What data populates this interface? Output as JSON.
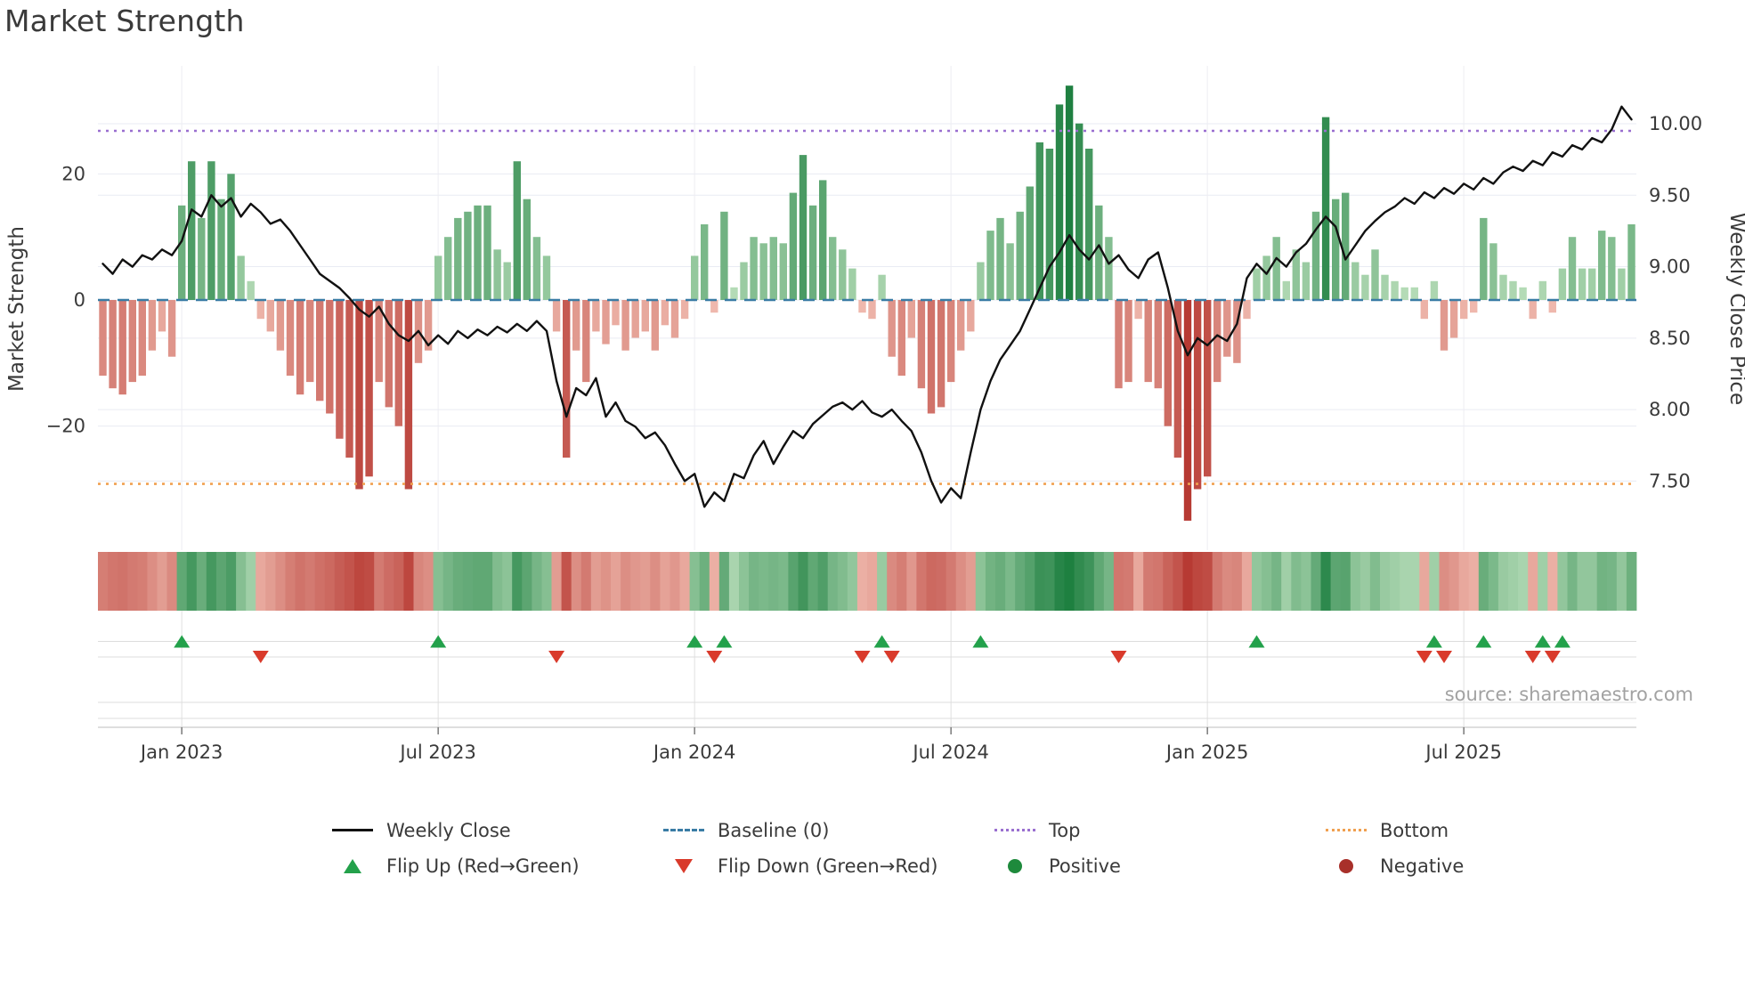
{
  "title": "Market Strength",
  "source_text": "source: sharemaestro.com",
  "axes": {
    "left_label": "Market Strength",
    "right_label": "Weekly Close Price",
    "left_ticks": [
      {
        "value": 20,
        "label": "20"
      },
      {
        "value": 0,
        "label": "0"
      },
      {
        "value": -20,
        "label": "−20"
      }
    ],
    "right_ticks": [
      {
        "value": 10.0,
        "label": "10.00"
      },
      {
        "value": 9.5,
        "label": "9.50"
      },
      {
        "value": 9.0,
        "label": "9.00"
      },
      {
        "value": 8.5,
        "label": "8.50"
      },
      {
        "value": 8.0,
        "label": "8.00"
      },
      {
        "value": 7.5,
        "label": "7.50"
      }
    ],
    "x_ticks": [
      {
        "week": 8,
        "label": "Jan 2023"
      },
      {
        "week": 34,
        "label": "Jul 2023"
      },
      {
        "week": 60,
        "label": "Jan 2024"
      },
      {
        "week": 86,
        "label": "Jul 2024"
      },
      {
        "week": 112,
        "label": "Jan 2025"
      },
      {
        "week": 138,
        "label": "Jul 2025"
      }
    ]
  },
  "chart_data": {
    "type": "bar+line",
    "x_unit": "week",
    "weeks": 156,
    "left_axis_range": [
      -38,
      37
    ],
    "right_axis_range": [
      7.29,
      10.36
    ],
    "series": [
      {
        "name": "Market Strength",
        "type": "bar",
        "axis": "left",
        "values": [
          -12,
          -14,
          -15,
          -13,
          -12,
          -8,
          -5,
          -9,
          15,
          22,
          13,
          22,
          16,
          20,
          7,
          3,
          -3,
          -5,
          -8,
          -12,
          -15,
          -13,
          -16,
          -18,
          -22,
          -25,
          -30,
          -28,
          -13,
          -17,
          -20,
          -30,
          -10,
          -8,
          7,
          10,
          13,
          14,
          15,
          15,
          8,
          6,
          22,
          16,
          10,
          7,
          -5,
          -25,
          -8,
          -13,
          -5,
          -7,
          -4,
          -8,
          -6,
          -5,
          -8,
          -4,
          -6,
          -3,
          7,
          12,
          -2,
          14,
          2,
          6,
          10,
          9,
          10,
          9,
          17,
          23,
          15,
          19,
          10,
          8,
          5,
          -2,
          -3,
          4,
          -9,
          -12,
          -6,
          -14,
          -18,
          -17,
          -13,
          -8,
          -5,
          6,
          11,
          13,
          9,
          14,
          18,
          25,
          24,
          31,
          34,
          28,
          24,
          15,
          10,
          -14,
          -13,
          -3,
          -13,
          -14,
          -20,
          -25,
          -35,
          -30,
          -28,
          -13,
          -9,
          -10,
          -3,
          5,
          7,
          10,
          3,
          8,
          6,
          14,
          29,
          16,
          17,
          6,
          4,
          8,
          4,
          3,
          2,
          2,
          -3,
          3,
          -8,
          -6,
          -3,
          -2,
          13,
          9,
          4,
          3,
          2,
          -3,
          3,
          -2,
          5,
          10,
          5,
          5,
          11,
          10,
          5,
          12
        ]
      },
      {
        "name": "Weekly Close",
        "type": "line",
        "axis": "right",
        "values": [
          9.02,
          8.95,
          9.05,
          9.0,
          9.08,
          9.05,
          9.12,
          9.08,
          9.18,
          9.4,
          9.35,
          9.5,
          9.42,
          9.48,
          9.35,
          9.44,
          9.38,
          9.3,
          9.33,
          9.25,
          9.15,
          9.05,
          8.95,
          8.9,
          8.85,
          8.78,
          8.7,
          8.65,
          8.72,
          8.6,
          8.52,
          8.48,
          8.55,
          8.45,
          8.52,
          8.46,
          8.55,
          8.5,
          8.56,
          8.52,
          8.58,
          8.54,
          8.6,
          8.55,
          8.62,
          8.55,
          8.2,
          7.95,
          8.15,
          8.1,
          8.22,
          7.95,
          8.05,
          7.92,
          7.88,
          7.8,
          7.84,
          7.75,
          7.62,
          7.5,
          7.55,
          7.32,
          7.42,
          7.36,
          7.55,
          7.52,
          7.68,
          7.78,
          7.62,
          7.74,
          7.85,
          7.8,
          7.9,
          7.96,
          8.02,
          8.05,
          8.0,
          8.06,
          7.98,
          7.95,
          8.0,
          7.92,
          7.85,
          7.7,
          7.5,
          7.35,
          7.45,
          7.38,
          7.7,
          8.0,
          8.2,
          8.35,
          8.45,
          8.55,
          8.7,
          8.85,
          9.0,
          9.1,
          9.22,
          9.12,
          9.05,
          9.15,
          9.02,
          9.08,
          8.98,
          8.92,
          9.05,
          9.1,
          8.85,
          8.55,
          8.38,
          8.5,
          8.45,
          8.52,
          8.48,
          8.6,
          8.92,
          9.02,
          8.95,
          9.06,
          9.0,
          9.1,
          9.16,
          9.26,
          9.35,
          9.28,
          9.05,
          9.15,
          9.25,
          9.32,
          9.38,
          9.42,
          9.48,
          9.44,
          9.52,
          9.48,
          9.55,
          9.51,
          9.58,
          9.54,
          9.62,
          9.58,
          9.66,
          9.7,
          9.67,
          9.74,
          9.71,
          9.8,
          9.77,
          9.85,
          9.82,
          9.9,
          9.87,
          9.96,
          10.12,
          10.03
        ]
      }
    ],
    "reference_lines": [
      {
        "name": "Baseline (0)",
        "axis": "left",
        "value": 0
      },
      {
        "name": "Top",
        "axis": "right",
        "value": 9.95
      },
      {
        "name": "Bottom",
        "axis": "right",
        "value": 7.48
      }
    ],
    "flip_up_weeks": [
      8,
      34,
      60,
      63,
      79,
      89,
      117,
      135,
      140,
      146,
      148
    ],
    "flip_down_weeks": [
      16,
      46,
      62,
      77,
      80,
      103,
      134,
      136,
      145,
      147
    ]
  },
  "legend": [
    {
      "label": "Weekly Close",
      "marker": "solid-black-line"
    },
    {
      "label": "Baseline (0)",
      "marker": "dashed-blue-line"
    },
    {
      "label": "Top",
      "marker": "dotted-purple-line"
    },
    {
      "label": "Bottom",
      "marker": "dotted-orange-line"
    },
    {
      "label": "Flip Up (Red→Green)",
      "marker": "green-up-triangle"
    },
    {
      "label": "Flip Down (Green→Red)",
      "marker": "red-down-triangle"
    },
    {
      "label": "Positive",
      "marker": "green-circle"
    },
    {
      "label": "Negative",
      "marker": "dark-red-circle"
    }
  ],
  "colors": {
    "positive_dark": "#1b7e3e",
    "positive_light": "#c8e7c6",
    "negative_dark": "#b73a33",
    "negative_light": "#f6c9bd",
    "price_line": "#111111",
    "baseline": "#3a7ca5",
    "top_line": "#9a6fd0",
    "bottom_line": "#f0a050",
    "flip_up": "#23a14b",
    "flip_down": "#d93a2b",
    "positive_marker": "#1e8a3c",
    "negative_marker": "#a8302a"
  }
}
